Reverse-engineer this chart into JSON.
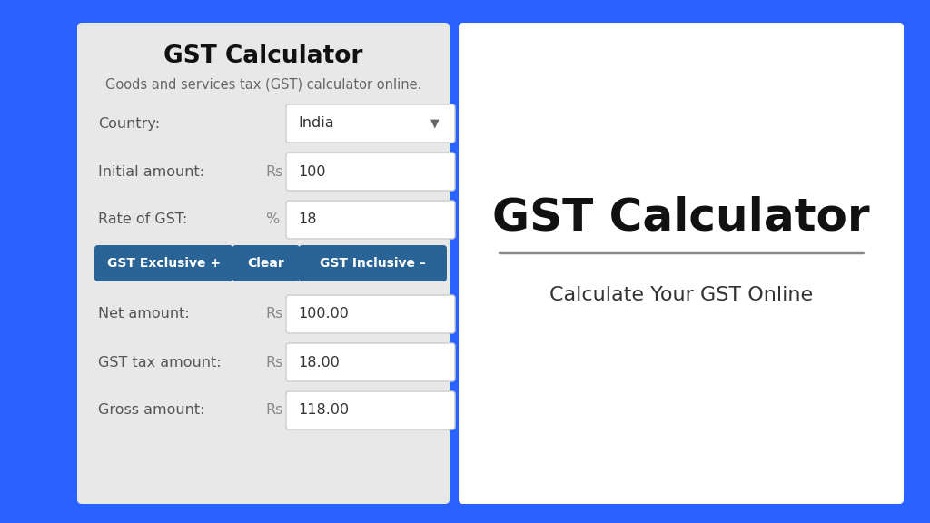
{
  "bg_color": "#2962FF",
  "left_panel_bg": "#e8e8e8",
  "right_panel_bg": "#ffffff",
  "card_title": "GST Calculator",
  "card_subtitle": "Goods and services tax (GST) calculator online.",
  "right_title": "GST Calculator",
  "right_subtitle": "Calculate Your GST Online",
  "fields": [
    {
      "label": "Country:",
      "unit": "",
      "value": "India",
      "dropdown": true
    },
    {
      "label": "Initial amount:",
      "unit": "Rs",
      "value": "100",
      "dropdown": false
    },
    {
      "label": "Rate of GST:",
      "unit": "%",
      "value": "18",
      "dropdown": false
    }
  ],
  "buttons": [
    {
      "text": "GST Exclusive +",
      "color": "#2a6496"
    },
    {
      "text": "Clear",
      "color": "#2a6496"
    },
    {
      "text": "GST Inclusive –",
      "color": "#2a6496"
    }
  ],
  "results": [
    {
      "label": "Net amount:",
      "unit": "Rs",
      "value": "100.00"
    },
    {
      "label": "GST tax amount:",
      "unit": "Rs",
      "value": "18.00"
    },
    {
      "label": "Gross amount:",
      "unit": "Rs",
      "value": "118.00"
    }
  ],
  "label_color": "#555555",
  "unit_color": "#888888",
  "input_text_color": "#333333",
  "divider_color": "#888888"
}
